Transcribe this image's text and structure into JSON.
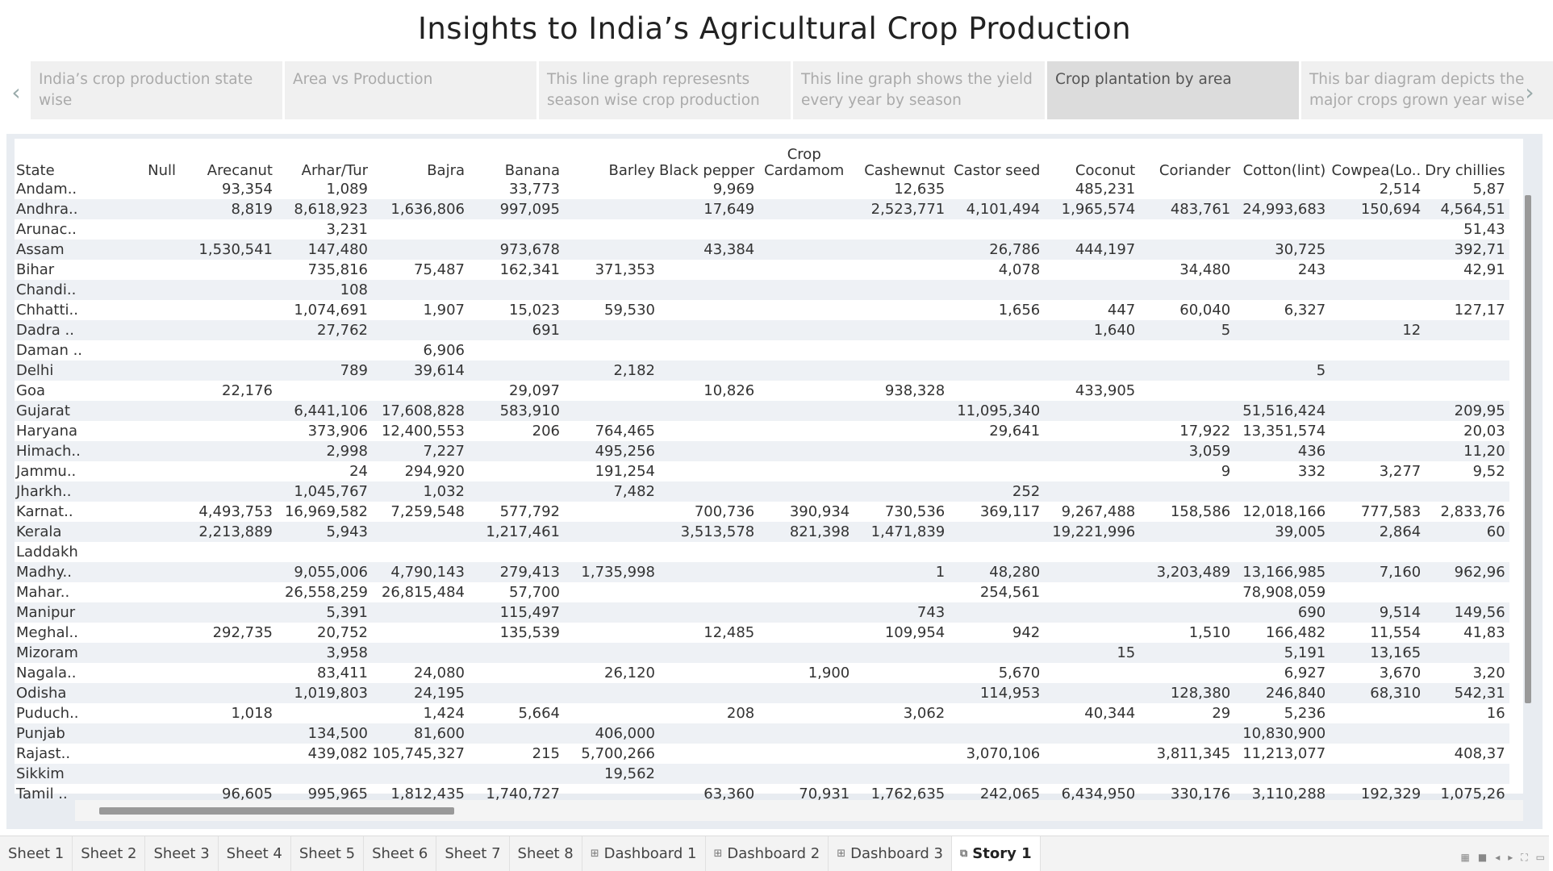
{
  "story_title": "Insights to India’s Agricultural Crop Production",
  "story_points": [
    "India’s crop production state wise",
    "Area vs Production",
    "This line graph represesnts season wise crop production",
    "This line graph shows the yield every year by season",
    "Crop plantation by area",
    "This bar diagram depicts the major crops grown year wise"
  ],
  "active_story_point": 4,
  "nav": {
    "left": "‹",
    "right": "›"
  },
  "table": {
    "columns": [
      "State",
      "Null",
      "Arecanut",
      "Arhar/Tur",
      "Bajra",
      "Banana",
      "Barley",
      "Black pepper",
      "Crop Cardamom",
      "Cashewnut",
      "Castor seed",
      "Coconut",
      "Coriander",
      "Cotton(lint)",
      "Cowpea(Lo..",
      "Dry chillies"
    ],
    "rows": [
      [
        "Andam..",
        "",
        "93,354",
        "1,089",
        "",
        "33,773",
        "",
        "9,969",
        "",
        "12,635",
        "",
        "485,231",
        "",
        "",
        "2,514",
        "5,87"
      ],
      [
        "Andhra..",
        "",
        "8,819",
        "8,618,923",
        "1,636,806",
        "997,095",
        "",
        "17,649",
        "",
        "2,523,771",
        "4,101,494",
        "1,965,574",
        "483,761",
        "24,993,683",
        "150,694",
        "4,564,51"
      ],
      [
        "Arunac..",
        "",
        "",
        "3,231",
        "",
        "",
        "",
        "",
        "",
        "",
        "",
        "",
        "",
        "",
        "",
        "51,43"
      ],
      [
        "Assam",
        "",
        "1,530,541",
        "147,480",
        "",
        "973,678",
        "",
        "43,384",
        "",
        "",
        "26,786",
        "444,197",
        "",
        "30,725",
        "",
        "392,71"
      ],
      [
        "Bihar",
        "",
        "",
        "735,816",
        "75,487",
        "162,341",
        "371,353",
        "",
        "",
        "",
        "4,078",
        "",
        "34,480",
        "243",
        "",
        "42,91"
      ],
      [
        "Chandi..",
        "",
        "",
        "108",
        "",
        "",
        "",
        "",
        "",
        "",
        "",
        "",
        "",
        "",
        "",
        ""
      ],
      [
        "Chhatti..",
        "",
        "",
        "1,074,691",
        "1,907",
        "15,023",
        "59,530",
        "",
        "",
        "",
        "1,656",
        "447",
        "60,040",
        "6,327",
        "",
        "127,17"
      ],
      [
        "Dadra ..",
        "",
        "",
        "27,762",
        "",
        "691",
        "",
        "",
        "",
        "",
        "",
        "1,640",
        "5",
        "",
        "12",
        ""
      ],
      [
        "Daman ..",
        "",
        "",
        "",
        "6,906",
        "",
        "",
        "",
        "",
        "",
        "",
        "",
        "",
        "",
        "",
        ""
      ],
      [
        "Delhi",
        "",
        "",
        "789",
        "39,614",
        "",
        "2,182",
        "",
        "",
        "",
        "",
        "",
        "",
        "5",
        "",
        ""
      ],
      [
        "Goa",
        "",
        "22,176",
        "",
        "",
        "29,097",
        "",
        "10,826",
        "",
        "938,328",
        "",
        "433,905",
        "",
        "",
        "",
        ""
      ],
      [
        "Gujarat",
        "",
        "",
        "6,441,106",
        "17,608,828",
        "583,910",
        "",
        "",
        "",
        "",
        "11,095,340",
        "",
        "",
        "51,516,424",
        "",
        "209,95"
      ],
      [
        "Haryana",
        "",
        "",
        "373,906",
        "12,400,553",
        "206",
        "764,465",
        "",
        "",
        "",
        "29,641",
        "",
        "17,922",
        "13,351,574",
        "",
        "20,03"
      ],
      [
        "Himach..",
        "",
        "",
        "2,998",
        "7,227",
        "",
        "495,256",
        "",
        "",
        "",
        "",
        "",
        "3,059",
        "436",
        "",
        "11,20"
      ],
      [
        "Jammu..",
        "",
        "",
        "24",
        "294,920",
        "",
        "191,254",
        "",
        "",
        "",
        "",
        "",
        "9",
        "332",
        "3,277",
        "9,52"
      ],
      [
        "Jharkh..",
        "",
        "",
        "1,045,767",
        "1,032",
        "",
        "7,482",
        "",
        "",
        "",
        "252",
        "",
        "",
        "",
        "",
        ""
      ],
      [
        "Karnat..",
        "",
        "4,493,753",
        "16,969,582",
        "7,259,548",
        "577,792",
        "",
        "700,736",
        "390,934",
        "730,536",
        "369,117",
        "9,267,488",
        "158,586",
        "12,018,166",
        "777,583",
        "2,833,76"
      ],
      [
        "Kerala",
        "",
        "2,213,889",
        "5,943",
        "",
        "1,217,461",
        "",
        "3,513,578",
        "821,398",
        "1,471,839",
        "",
        "19,221,996",
        "",
        "39,005",
        "2,864",
        "60"
      ],
      [
        "Laddakh",
        "",
        "",
        "",
        "",
        "",
        "",
        "",
        "",
        "",
        "",
        "",
        "",
        "",
        "",
        ""
      ],
      [
        "Madhy..",
        "",
        "",
        "9,055,006",
        "4,790,143",
        "279,413",
        "1,735,998",
        "",
        "",
        "1",
        "48,280",
        "",
        "3,203,489",
        "13,166,985",
        "7,160",
        "962,96"
      ],
      [
        "Mahar..",
        "",
        "",
        "26,558,259",
        "26,815,484",
        "57,700",
        "",
        "",
        "",
        "",
        "254,561",
        "",
        "",
        "78,908,059",
        "",
        ""
      ],
      [
        "Manipur",
        "",
        "",
        "5,391",
        "",
        "115,497",
        "",
        "",
        "",
        "743",
        "",
        "",
        "",
        "690",
        "9,514",
        "149,56"
      ],
      [
        "Meghal..",
        "",
        "292,735",
        "20,752",
        "",
        "135,539",
        "",
        "12,485",
        "",
        "109,954",
        "942",
        "",
        "1,510",
        "166,482",
        "11,554",
        "41,83"
      ],
      [
        "Mizoram",
        "",
        "",
        "3,958",
        "",
        "",
        "",
        "",
        "",
        "",
        "",
        "15",
        "",
        "5,191",
        "13,165",
        ""
      ],
      [
        "Nagala..",
        "",
        "",
        "83,411",
        "24,080",
        "",
        "26,120",
        "",
        "1,900",
        "",
        "5,670",
        "",
        "",
        "6,927",
        "3,670",
        "3,20"
      ],
      [
        "Odisha",
        "",
        "",
        "1,019,803",
        "24,195",
        "",
        "",
        "",
        "",
        "",
        "114,953",
        "",
        "128,380",
        "246,840",
        "68,310",
        "542,31"
      ],
      [
        "Puduch..",
        "",
        "1,018",
        "",
        "1,424",
        "5,664",
        "",
        "208",
        "",
        "3,062",
        "",
        "40,344",
        "29",
        "5,236",
        "",
        "16"
      ],
      [
        "Punjab",
        "",
        "",
        "134,500",
        "81,600",
        "",
        "406,000",
        "",
        "",
        "",
        "",
        "",
        "",
        "10,830,900",
        "",
        ""
      ],
      [
        "Rajast..",
        "",
        "",
        "439,082",
        "105,745,327",
        "215",
        "5,700,266",
        "",
        "",
        "",
        "3,070,106",
        "",
        "3,811,345",
        "11,213,077",
        "",
        "408,37"
      ],
      [
        "Sikkim",
        "",
        "",
        "",
        "",
        "",
        "19,562",
        "",
        "",
        "",
        "",
        "",
        "",
        "",
        "",
        ""
      ],
      [
        "Tamil ..",
        "",
        "96,605",
        "995,965",
        "1,812,435",
        "1,740,727",
        "",
        "63,360",
        "70,931",
        "1,762,635",
        "242,065",
        "6,434,950",
        "330,176",
        "3,110,288",
        "192,329",
        "1,075,26"
      ]
    ]
  },
  "tabs": [
    {
      "label": "Sheet 1",
      "icon": ""
    },
    {
      "label": "Sheet 2",
      "icon": ""
    },
    {
      "label": "Sheet 3",
      "icon": ""
    },
    {
      "label": "Sheet 4",
      "icon": ""
    },
    {
      "label": "Sheet 5",
      "icon": ""
    },
    {
      "label": "Sheet 6",
      "icon": ""
    },
    {
      "label": "Sheet 7",
      "icon": ""
    },
    {
      "label": "Sheet 8",
      "icon": ""
    },
    {
      "label": "Dashboard 1",
      "icon": "⊞"
    },
    {
      "label": "Dashboard 2",
      "icon": "⊞"
    },
    {
      "label": "Dashboard 3",
      "icon": "⊞"
    },
    {
      "label": "Story 1",
      "icon": "⧉"
    }
  ],
  "active_tab": 11,
  "colors": {
    "accent_bg": "#e8ecf1",
    "row_alt": "#eef1f5",
    "active_story": "#dcdcdc"
  }
}
